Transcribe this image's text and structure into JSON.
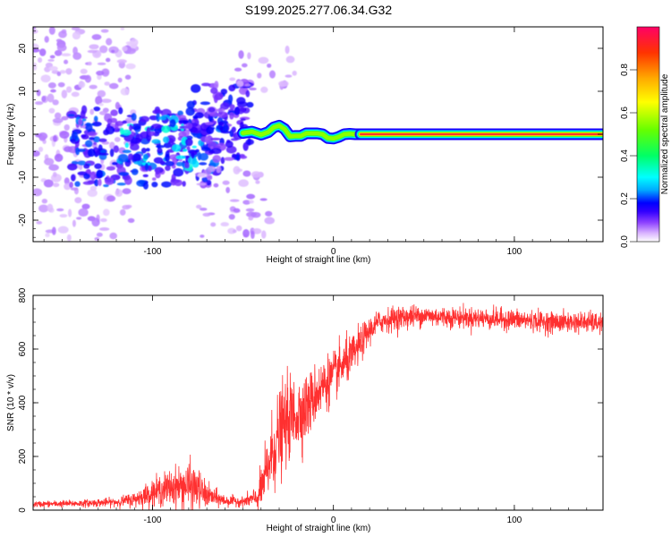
{
  "figure": {
    "title": "S199.2025.277.06.34.G32"
  },
  "chart_data": [
    {
      "type": "heatmap",
      "xlabel": "Height of straight line (km)",
      "ylabel": "Frequency (Hz)",
      "xlim": [
        -166,
        149
      ],
      "ylim": [
        -25,
        25
      ],
      "x_ticks": [
        -100,
        0,
        100
      ],
      "y_ticks": [
        -20,
        -10,
        0,
        10,
        20
      ],
      "colorbar": {
        "label": "Normalized spectral amplitude",
        "range": [
          0,
          1
        ],
        "ticks": [
          "0.0",
          "0.2",
          "0.4",
          "0.6",
          "0.8"
        ],
        "tick_values": [
          0,
          0.2,
          0.4,
          0.6,
          0.8
        ],
        "colors": [
          "#ffffff",
          "#d9b3ff",
          "#8c40ff",
          "#3300ff",
          "#0000ff",
          "#00aaff",
          "#00ffff",
          "#00ff66",
          "#66ff00",
          "#ffff00",
          "#ffaa00",
          "#ff3300",
          "#ff0066"
        ],
        "color_stops": [
          0,
          0.04,
          0.09,
          0.14,
          0.18,
          0.24,
          0.3,
          0.4,
          0.52,
          0.65,
          0.76,
          0.88,
          1.0
        ]
      },
      "ridge_segments": [
        {
          "x": [
            -50,
            -45,
            -40,
            -36,
            -33,
            -30,
            -27,
            -24,
            -21,
            -18,
            -15,
            -12,
            -9,
            -6,
            -3,
            0,
            3,
            6,
            9,
            12,
            15
          ],
          "y": [
            0.3,
            0.6,
            -0.1,
            0.5,
            1.6,
            2.0,
            1.2,
            -0.5,
            -0.4,
            -0.4,
            0.2,
            0.2,
            0.2,
            0.0,
            -0.9,
            -1.0,
            -0.6,
            0.0,
            0.1,
            0.0,
            0.0
          ]
        },
        {
          "x": [
            15,
            149
          ],
          "y": [
            0.0,
            0.0
          ]
        }
      ],
      "speckle_regions": [
        {
          "x_range": [
            -166,
            -110
          ],
          "y_range": [
            -25,
            25
          ],
          "amplitude": 0.05,
          "count": 220
        },
        {
          "x_range": [
            -145,
            -60
          ],
          "y_range": [
            -12,
            6
          ],
          "amplitude": 0.15,
          "count": 260
        },
        {
          "x_range": [
            -120,
            -70
          ],
          "y_range": [
            -8,
            4
          ],
          "amplitude": 0.22,
          "count": 60
        },
        {
          "x_range": [
            -80,
            -45
          ],
          "y_range": [
            -6,
            12
          ],
          "amplitude": 0.13,
          "count": 120
        },
        {
          "x_range": [
            -75,
            -35
          ],
          "y_range": [
            -24,
            -8
          ],
          "amplitude": 0.05,
          "count": 50
        },
        {
          "x_range": [
            -60,
            -20
          ],
          "y_range": [
            10,
            20
          ],
          "amplitude": 0.05,
          "count": 20
        }
      ]
    },
    {
      "type": "line",
      "xlabel": "Height of straight line (km)",
      "ylabel": "SNR (10 * v/v)",
      "xlim": [
        -166,
        149
      ],
      "ylim": [
        0,
        800
      ],
      "x_ticks": [
        -100,
        0,
        100
      ],
      "y_ticks": [
        0,
        200,
        400,
        600,
        800
      ],
      "line_color": "#ff3030",
      "envelope": {
        "x": [
          -166,
          -140,
          -120,
          -110,
          -100,
          -90,
          -80,
          -75,
          -70,
          -60,
          -50,
          -42,
          -38,
          -35,
          -30,
          -25,
          -20,
          -15,
          -10,
          -5,
          0,
          5,
          10,
          15,
          20,
          25,
          30,
          40,
          50,
          60,
          80,
          100,
          120,
          140,
          149
        ],
        "mean": [
          22,
          25,
          30,
          40,
          65,
          85,
          90,
          80,
          55,
          35,
          32,
          45,
          110,
          190,
          280,
          340,
          360,
          380,
          430,
          470,
          500,
          540,
          570,
          620,
          670,
          700,
          710,
          720,
          725,
          720,
          715,
          710,
          700,
          700,
          695
        ],
        "spread": [
          10,
          12,
          15,
          25,
          45,
          60,
          80,
          70,
          40,
          20,
          15,
          40,
          100,
          130,
          150,
          140,
          130,
          110,
          100,
          90,
          80,
          80,
          70,
          60,
          45,
          40,
          40,
          40,
          35,
          35,
          35,
          35,
          35,
          35,
          35
        ]
      }
    }
  ]
}
